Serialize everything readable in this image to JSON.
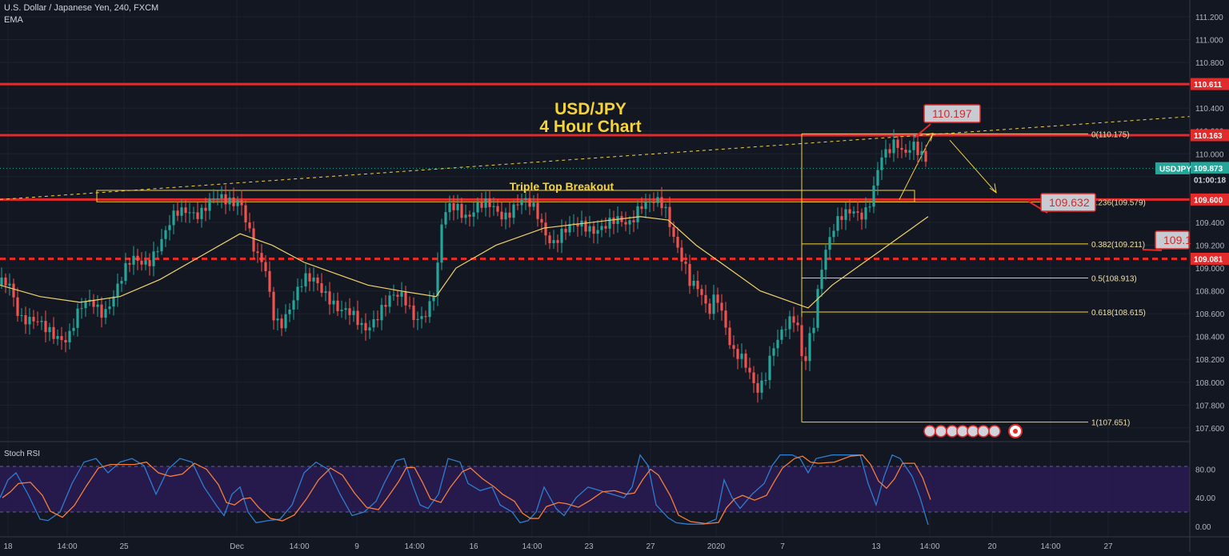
{
  "header": {
    "symbol_line": "U.S. Dollar / Japanese Yen, 240, FXCM",
    "indicator": "EMA"
  },
  "chart_data": {
    "type": "candlestick",
    "title": "USD/JPY",
    "subtitle": "4 Hour Chart",
    "annotation": "Triple Top Breakout",
    "y_ticks": [
      "111.200",
      "111.000",
      "110.800",
      "110.600",
      "110.400",
      "110.200",
      "110.000",
      "109.800",
      "109.600",
      "109.400",
      "109.200",
      "109.000",
      "108.800",
      "108.600",
      "108.400",
      "108.200",
      "108.000",
      "107.800",
      "107.600"
    ],
    "ylim": [
      107.55,
      111.27
    ],
    "x_ticks": [
      "18",
      "14:00",
      "25",
      "Dec",
      "14:00",
      "9",
      "14:00",
      "16",
      "14:00",
      "23",
      "27",
      "2020",
      "7",
      "13",
      "14:00",
      "20",
      "14:00",
      "27"
    ],
    "price_labels": [
      {
        "text": "110.611",
        "color": "#e32b2b"
      },
      {
        "text": "110.163",
        "color": "#e32b2b"
      },
      {
        "text": "109.873",
        "color": "#26a69a"
      },
      {
        "text": "01:00:18",
        "color": "#131722"
      },
      {
        "text": "109.600",
        "color": "#e32b2b"
      },
      {
        "text": "109.081",
        "color": "#e32b2b"
      }
    ],
    "callouts": [
      "110.197",
      "109.632",
      "109.1"
    ],
    "symbol_tag": "USDJPY",
    "fib_levels": [
      {
        "label": "0(110.175)",
        "value": 110.175
      },
      {
        "label": "0.236(109.579)",
        "value": 109.579
      },
      {
        "label": "0.382(109.211)",
        "value": 109.211
      },
      {
        "label": "0.5(108.913)",
        "value": 108.913
      },
      {
        "label": "0.618(108.615)",
        "value": 108.615
      },
      {
        "label": "1(107.651)",
        "value": 107.651
      }
    ],
    "horizontal_levels": [
      110.611,
      110.163,
      109.6,
      109.081
    ],
    "last_price": 109.873,
    "close_path": [
      [
        0,
        108.85
      ],
      [
        12,
        108.9
      ],
      [
        25,
        108.6
      ],
      [
        40,
        108.5
      ],
      [
        55,
        108.45
      ],
      [
        70,
        108.45
      ],
      [
        85,
        108.4
      ],
      [
        100,
        108.6
      ],
      [
        115,
        108.7
      ],
      [
        130,
        108.65
      ],
      [
        150,
        108.85
      ],
      [
        165,
        109.05
      ],
      [
        185,
        109.1
      ],
      [
        205,
        109.25
      ],
      [
        220,
        109.45
      ],
      [
        235,
        109.55
      ],
      [
        250,
        109.5
      ],
      [
        265,
        109.55
      ],
      [
        285,
        109.6
      ],
      [
        300,
        109.65
      ],
      [
        312,
        109.3
      ],
      [
        320,
        109.05
      ],
      [
        330,
        109.0
      ],
      [
        342,
        108.6
      ],
      [
        350,
        108.55
      ],
      [
        365,
        108.7
      ],
      [
        380,
        108.85
      ],
      [
        395,
        108.9
      ],
      [
        410,
        108.8
      ],
      [
        425,
        108.6
      ],
      [
        440,
        108.55
      ],
      [
        455,
        108.5
      ],
      [
        470,
        108.6
      ],
      [
        490,
        108.7
      ],
      [
        505,
        108.75
      ],
      [
        520,
        108.6
      ],
      [
        535,
        108.6
      ],
      [
        545,
        108.8
      ],
      [
        552,
        109.35
      ],
      [
        560,
        109.55
      ],
      [
        570,
        109.6
      ],
      [
        585,
        109.45
      ],
      [
        600,
        109.5
      ],
      [
        615,
        109.55
      ],
      [
        630,
        109.5
      ],
      [
        650,
        109.55
      ],
      [
        670,
        109.5
      ],
      [
        690,
        109.25
      ],
      [
        710,
        109.3
      ],
      [
        730,
        109.4
      ],
      [
        760,
        109.35
      ],
      [
        785,
        109.4
      ],
      [
        800,
        109.6
      ],
      [
        815,
        109.55
      ],
      [
        830,
        109.5
      ],
      [
        845,
        109.25
      ],
      [
        855,
        109.1
      ],
      [
        862,
        108.9
      ],
      [
        875,
        108.75
      ],
      [
        885,
        108.55
      ],
      [
        895,
        108.8
      ],
      [
        905,
        108.6
      ],
      [
        915,
        108.3
      ],
      [
        925,
        108.2
      ],
      [
        935,
        108.05
      ],
      [
        945,
        107.9
      ],
      [
        955,
        108.05
      ],
      [
        965,
        108.35
      ],
      [
        980,
        108.45
      ],
      [
        992,
        108.5
      ],
      [
        1000,
        108.4
      ],
      [
        1004,
        108.05
      ],
      [
        1010,
        108.4
      ],
      [
        1018,
        108.6
      ],
      [
        1025,
        109.0
      ],
      [
        1035,
        109.2
      ],
      [
        1050,
        109.4
      ],
      [
        1065,
        109.55
      ],
      [
        1080,
        109.5
      ],
      [
        1090,
        109.6
      ],
      [
        1100,
        109.9
      ],
      [
        1110,
        110.0
      ],
      [
        1120,
        110.15
      ],
      [
        1130,
        110.05
      ],
      [
        1140,
        110.1
      ],
      [
        1150,
        109.95
      ],
      [
        1160,
        109.87
      ]
    ],
    "ema_path": [
      [
        0,
        108.85
      ],
      [
        50,
        108.75
      ],
      [
        100,
        108.7
      ],
      [
        150,
        108.75
      ],
      [
        200,
        108.9
      ],
      [
        250,
        109.1
      ],
      [
        300,
        109.3
      ],
      [
        340,
        109.2
      ],
      [
        380,
        109.05
      ],
      [
        420,
        108.95
      ],
      [
        460,
        108.85
      ],
      [
        500,
        108.8
      ],
      [
        545,
        108.75
      ],
      [
        570,
        109.0
      ],
      [
        620,
        109.2
      ],
      [
        680,
        109.35
      ],
      [
        740,
        109.4
      ],
      [
        800,
        109.45
      ],
      [
        835,
        109.42
      ],
      [
        870,
        109.2
      ],
      [
        910,
        109.0
      ],
      [
        950,
        108.8
      ],
      [
        990,
        108.7
      ],
      [
        1010,
        108.65
      ],
      [
        1040,
        108.85
      ],
      [
        1080,
        109.05
      ],
      [
        1120,
        109.25
      ],
      [
        1160,
        109.45
      ]
    ],
    "stoch_rsi": {
      "label": "Stoch RSI",
      "ylim": [
        -8,
        112
      ],
      "y_ticks": [
        "80.00",
        "40.00",
        "0.00"
      ],
      "band": [
        20,
        80
      ],
      "k_points": [
        [
          0,
          40
        ],
        [
          10,
          65
        ],
        [
          20,
          75
        ],
        [
          35,
          45
        ],
        [
          50,
          10
        ],
        [
          60,
          8
        ],
        [
          75,
          20
        ],
        [
          90,
          60
        ],
        [
          105,
          90
        ],
        [
          120,
          95
        ],
        [
          135,
          75
        ],
        [
          150,
          90
        ],
        [
          165,
          95
        ],
        [
          180,
          85
        ],
        [
          195,
          45
        ],
        [
          210,
          80
        ],
        [
          225,
          95
        ],
        [
          240,
          90
        ],
        [
          255,
          55
        ],
        [
          270,
          30
        ],
        [
          280,
          15
        ],
        [
          290,
          45
        ],
        [
          300,
          55
        ],
        [
          310,
          20
        ],
        [
          320,
          5
        ],
        [
          335,
          8
        ],
        [
          350,
          10
        ],
        [
          365,
          30
        ],
        [
          380,
          75
        ],
        [
          395,
          90
        ],
        [
          410,
          80
        ],
        [
          425,
          45
        ],
        [
          440,
          15
        ],
        [
          455,
          20
        ],
        [
          470,
          35
        ],
        [
          480,
          60
        ],
        [
          495,
          92
        ],
        [
          505,
          95
        ],
        [
          515,
          60
        ],
        [
          525,
          30
        ],
        [
          535,
          25
        ],
        [
          548,
          45
        ],
        [
          560,
          95
        ],
        [
          575,
          90
        ],
        [
          585,
          60
        ],
        [
          600,
          50
        ],
        [
          615,
          55
        ],
        [
          625,
          30
        ],
        [
          640,
          20
        ],
        [
          650,
          5
        ],
        [
          660,
          8
        ],
        [
          670,
          20
        ],
        [
          680,
          55
        ],
        [
          695,
          25
        ],
        [
          705,
          15
        ],
        [
          720,
          40
        ],
        [
          735,
          55
        ],
        [
          750,
          50
        ],
        [
          765,
          45
        ],
        [
          780,
          40
        ],
        [
          790,
          55
        ],
        [
          800,
          100
        ],
        [
          810,
          85
        ],
        [
          820,
          30
        ],
        [
          835,
          12
        ],
        [
          845,
          5
        ],
        [
          860,
          3
        ],
        [
          880,
          3
        ],
        [
          895,
          10
        ],
        [
          905,
          65
        ],
        [
          915,
          40
        ],
        [
          925,
          25
        ],
        [
          940,
          45
        ],
        [
          955,
          60
        ],
        [
          965,
          85
        ],
        [
          975,
          100
        ],
        [
          990,
          100
        ],
        [
          1000,
          95
        ],
        [
          1010,
          75
        ],
        [
          1020,
          95
        ],
        [
          1040,
          100
        ],
        [
          1060,
          100
        ],
        [
          1075,
          100
        ],
        [
          1085,
          60
        ],
        [
          1095,
          30
        ],
        [
          1105,
          70
        ],
        [
          1115,
          100
        ],
        [
          1125,
          95
        ],
        [
          1140,
          70
        ],
        [
          1150,
          40
        ],
        [
          1160,
          2
        ]
      ]
    }
  }
}
